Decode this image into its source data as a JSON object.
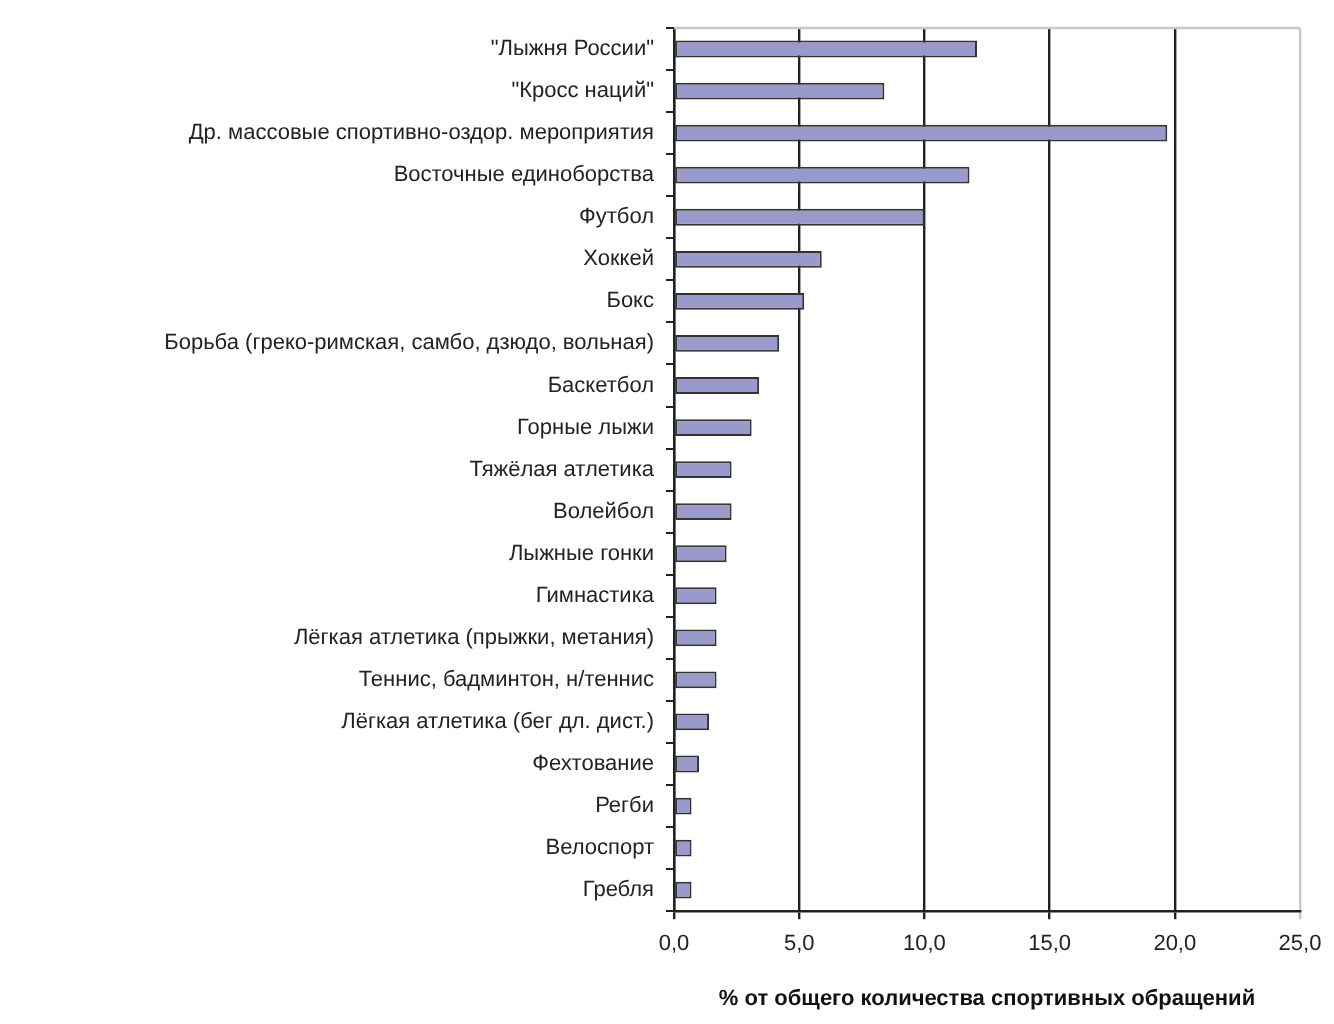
{
  "chart_data": {
    "type": "bar",
    "orientation": "horizontal",
    "categories": [
      "\"Лыжня России\"",
      "\"Кросс наций\"",
      "Др. массовые спортивно-оздор. мероприятия",
      "Восточные единоборства",
      "Футбол",
      "Хоккей",
      "Бокс",
      "Борьба (греко-римская, самбо, дзюдо, вольная)",
      "Баскетбол",
      "Горные лыжи",
      "Тяжёлая атлетика",
      "Волейбол",
      "Лыжные гонки",
      "Гимнастика",
      "Лёгкая атлетика (прыжки, метания)",
      "Теннис, бадминтон, н/теннис",
      "Лёгкая атлетика (бег дл. дист.)",
      "Фехтование",
      "Регби",
      "Велоспорт",
      "Гребля"
    ],
    "values": [
      12.1,
      8.4,
      19.7,
      11.8,
      10.0,
      5.9,
      5.2,
      4.2,
      3.4,
      3.1,
      2.3,
      2.3,
      2.1,
      1.7,
      1.7,
      1.7,
      1.4,
      1.0,
      0.7,
      0.7,
      0.7
    ],
    "color": "#9999cc",
    "xlabel": "% от общего количества спортивных обращений",
    "xlim": [
      0,
      25
    ],
    "xticks": [
      {
        "value": 0,
        "label": "0,0"
      },
      {
        "value": 5,
        "label": "5,0"
      },
      {
        "value": 10,
        "label": "10,0"
      },
      {
        "value": 15,
        "label": "15,0"
      },
      {
        "value": 20,
        "label": "20,0"
      },
      {
        "value": 25,
        "label": "25,0"
      }
    ],
    "grid": "x"
  }
}
